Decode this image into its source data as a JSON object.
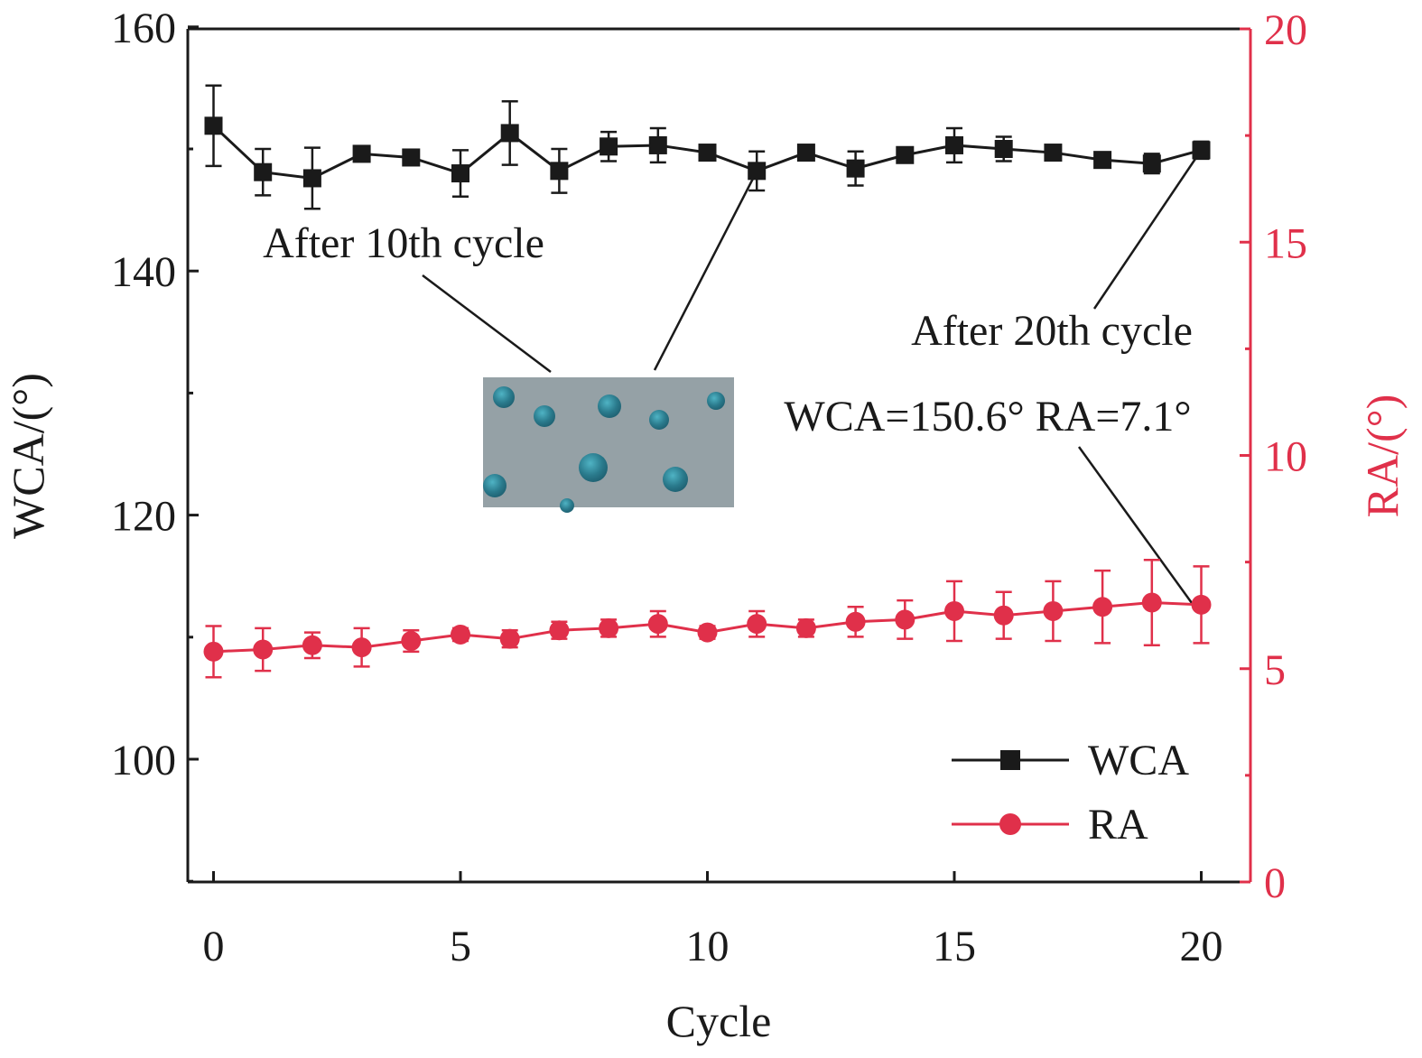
{
  "chart_data": {
    "type": "line",
    "x_label": "Cycle",
    "y_label_left": "WCA/(°)",
    "y_label_right": "RA/(°)",
    "x_ticks": [
      0,
      5,
      10,
      15,
      20
    ],
    "y_left_ticks": [
      100,
      120,
      140,
      160
    ],
    "y_right_ticks": [
      0,
      5,
      10,
      15,
      20
    ],
    "x_range": [
      -0.5,
      20.5
    ],
    "y_left_range": [
      90,
      160
    ],
    "y_right_range": [
      0,
      20
    ],
    "colors": {
      "wca": "#1a1a1a",
      "ra": "#e0304a",
      "right_axis": "#e0304a"
    },
    "series": [
      {
        "name": "WCA",
        "axis": "left",
        "marker": "square",
        "x": [
          0,
          1,
          2,
          3,
          4,
          5,
          6,
          7,
          8,
          9,
          10,
          11,
          12,
          13,
          14,
          15,
          16,
          17,
          18,
          19,
          20
        ],
        "values": [
          151.9,
          148.1,
          147.6,
          149.6,
          149.3,
          148.0,
          151.3,
          148.2,
          150.2,
          150.3,
          149.7,
          148.2,
          149.7,
          148.4,
          149.5,
          150.3,
          150.0,
          149.7,
          149.1,
          148.8,
          149.9
        ],
        "errors": [
          3.3,
          1.9,
          2.5,
          0.4,
          0.4,
          1.9,
          2.6,
          1.8,
          1.2,
          1.4,
          0.5,
          1.6,
          0.5,
          1.4,
          0.5,
          1.4,
          1.0,
          0.5,
          0.5,
          0.8,
          0.7
        ]
      },
      {
        "name": "RA",
        "axis": "right",
        "marker": "circle",
        "x": [
          0,
          1,
          2,
          3,
          4,
          5,
          6,
          7,
          8,
          9,
          10,
          11,
          12,
          13,
          14,
          15,
          16,
          17,
          18,
          19,
          20
        ],
        "values": [
          5.4,
          5.45,
          5.55,
          5.5,
          5.65,
          5.8,
          5.7,
          5.9,
          5.95,
          6.05,
          5.85,
          6.05,
          5.95,
          6.1,
          6.15,
          6.35,
          6.25,
          6.35,
          6.45,
          6.55,
          6.5
        ],
        "errors": [
          0.6,
          0.5,
          0.3,
          0.45,
          0.25,
          0.15,
          0.2,
          0.2,
          0.2,
          0.3,
          0.15,
          0.3,
          0.2,
          0.35,
          0.45,
          0.7,
          0.55,
          0.7,
          0.85,
          1.0,
          0.9
        ]
      }
    ],
    "legend": {
      "position": "bottom-right",
      "entries": [
        "WCA",
        "RA"
      ]
    },
    "annotations": {
      "after_10th": "After 10th cycle",
      "after_20th": "After 20th cycle",
      "measurement": "WCA=150.6° RA=7.1°"
    },
    "inset": {
      "description": "photo of water droplets on surface",
      "droplet_color": "#2a7a8c"
    }
  }
}
